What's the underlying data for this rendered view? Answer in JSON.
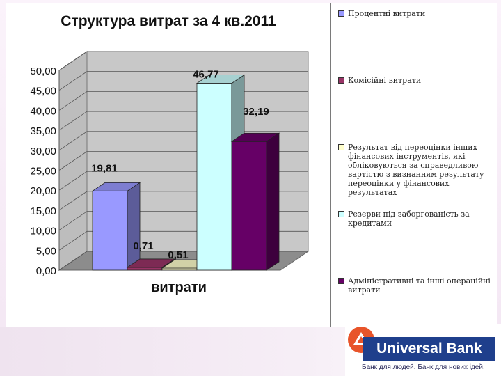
{
  "chart_data": {
    "type": "bar",
    "title": "Структура витрат за 4 кв.2011",
    "xlabel": "витрати",
    "ylabel": "",
    "ylim": [
      0,
      50
    ],
    "y_ticks": [
      "0,00",
      "5,00",
      "10,00",
      "15,00",
      "20,00",
      "25,00",
      "30,00",
      "35,00",
      "40,00",
      "45,00",
      "50,00"
    ],
    "grid": true,
    "legend_position": "right",
    "series": [
      {
        "name": "Процентні витрати",
        "values": [
          19.81
        ],
        "label": "19,81",
        "color": "#9999ff"
      },
      {
        "name": "Комісійні витрати",
        "values": [
          0.71
        ],
        "label": "0,71",
        "color": "#993366"
      },
      {
        "name": "Результат від переоцінки інших фінансових інструментів, які обліковуються за справедливою вартістю з визнанням результату переоцінки у фінансових результатах",
        "values": [
          0.51
        ],
        "label": "0,51",
        "color": "#ffffcc"
      },
      {
        "name": "Резерви під заборгованість за кредитами",
        "values": [
          46.77
        ],
        "label": "46,77",
        "color": "#ccffff"
      },
      {
        "name": "Адміністративні та інші операційні витрати",
        "values": [
          32.19
        ],
        "label": "32,19",
        "color": "#660066"
      }
    ]
  },
  "legend": {
    "items": [
      "Процентні витрати",
      "Комісійні витрати",
      "Результат від переоцінки інших фінансових інструментів, які обліковуються за справедливою вартістю з визнанням результату переоцінки у фінансових результатах",
      "Резерви під заборгованість за кредитами",
      "Адміністративні та інші операційні витрати"
    ]
  },
  "branding": {
    "bank_name": "Universal Bank",
    "slogan": "Банк для людей. Банк для нових ідей.",
    "logo_icon": "universal-bank-logo-icon"
  }
}
